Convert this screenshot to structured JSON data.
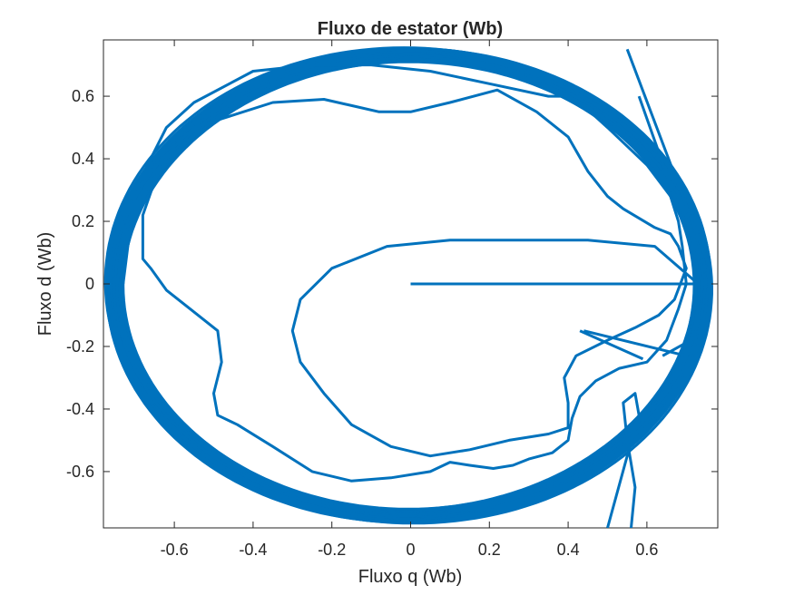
{
  "chart_data": {
    "type": "line",
    "title": "Fluxo de estator (Wb)",
    "xlabel": "Fluxo q (Wb)",
    "ylabel": "Fluxo d (Wb)",
    "xlim": [
      -0.78,
      0.78
    ],
    "ylim": [
      -0.78,
      0.78
    ],
    "xticks": [
      -0.6,
      -0.4,
      -0.2,
      0,
      0.2,
      0.4,
      0.6
    ],
    "xtick_labels": [
      "-0.6",
      "-0.4",
      "-0.2",
      "0",
      "0.2",
      "0.4",
      "0.6"
    ],
    "yticks": [
      -0.6,
      -0.4,
      -0.2,
      0,
      0.2,
      0.4,
      0.6
    ],
    "ytick_labels": [
      "-0.6",
      "-0.4",
      "-0.2",
      "0",
      "0.2",
      "0.4",
      "0.6"
    ],
    "grid": false,
    "line_color": "#0072BD",
    "series": [
      {
        "x": [
          0.0,
          0.73,
          0.62,
          0.45,
          0.28,
          0.1,
          -0.06,
          -0.2,
          -0.28,
          -0.3,
          -0.28,
          -0.22,
          -0.15,
          -0.05,
          0.05,
          0.15,
          0.25,
          0.35,
          0.4,
          0.4,
          0.39,
          0.42,
          0.5,
          0.57,
          0.63,
          0.67,
          0.7,
          0.68,
          0.66,
          0.62,
          0.58,
          0.54,
          0.5,
          0.45,
          0.4,
          0.32,
          0.22,
          0.1,
          0.0,
          -0.08,
          -0.15,
          -0.22,
          -0.35,
          -0.45,
          -0.55,
          -0.63,
          -0.68,
          -0.68,
          -0.66,
          -0.62,
          -0.56,
          -0.49,
          -0.48,
          -0.5,
          -0.49,
          -0.44,
          -0.35,
          -0.25,
          -0.15,
          -0.05,
          0.05,
          0.1,
          0.15,
          0.21,
          0.26,
          0.3,
          0.36,
          0.4,
          0.41,
          0.43,
          0.47,
          0.53,
          0.6,
          0.65,
          0.68,
          0.7,
          0.69,
          0.68,
          0.66,
          0.6,
          0.5,
          0.43,
          0.4,
          0.35,
          0.2,
          0.05,
          -0.1,
          -0.25,
          -0.4,
          -0.55,
          -0.62,
          -0.7,
          -0.73
        ],
        "y": [
          0.0,
          0.0,
          0.12,
          0.14,
          0.14,
          0.14,
          0.12,
          0.05,
          -0.05,
          -0.15,
          -0.25,
          -0.35,
          -0.45,
          -0.52,
          -0.55,
          -0.53,
          -0.5,
          -0.48,
          -0.46,
          -0.38,
          -0.3,
          -0.23,
          -0.18,
          -0.14,
          -0.1,
          -0.05,
          0.05,
          0.12,
          0.16,
          0.18,
          0.21,
          0.24,
          0.28,
          0.36,
          0.47,
          0.55,
          0.62,
          0.58,
          0.55,
          0.55,
          0.57,
          0.59,
          0.58,
          0.54,
          0.5,
          0.4,
          0.22,
          0.08,
          0.05,
          -0.02,
          -0.08,
          -0.15,
          -0.25,
          -0.35,
          -0.42,
          -0.45,
          -0.52,
          -0.6,
          -0.63,
          -0.62,
          -0.6,
          -0.57,
          -0.58,
          -0.59,
          -0.58,
          -0.56,
          -0.54,
          -0.5,
          -0.43,
          -0.36,
          -0.31,
          -0.27,
          -0.25,
          -0.18,
          -0.08,
          0.0,
          0.12,
          0.2,
          0.28,
          0.38,
          0.5,
          0.58,
          0.6,
          0.6,
          0.64,
          0.68,
          0.7,
          0.7,
          0.68,
          0.58,
          0.5,
          0.3,
          0.0
        ]
      }
    ]
  }
}
